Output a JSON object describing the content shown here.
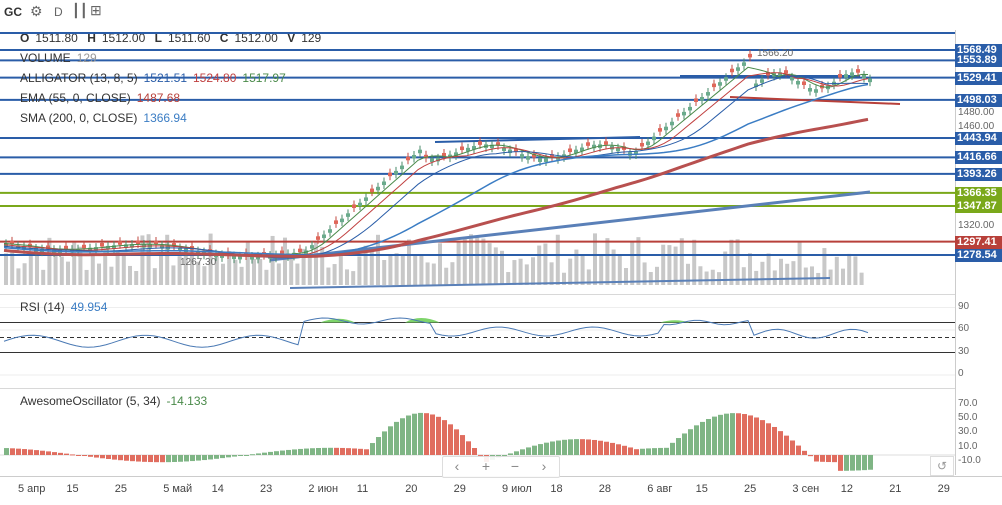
{
  "toolbar": {
    "symbol": "GC",
    "gear_icon": "gear-icon",
    "interval": "D",
    "indicators_icon": "indicators-icon",
    "add_icon": "add-chart-icon"
  },
  "ohlcv": {
    "o_label": "O",
    "o_value": "1511.80",
    "h_label": "H",
    "h_value": "1512.00",
    "l_label": "L",
    "l_value": "1511.60",
    "c_label": "C",
    "c_value": "1512.00",
    "v_label": "V",
    "v_value": "129"
  },
  "legend": {
    "volume_label": "VOLUME",
    "volume_value": "129",
    "alligator_label": "ALLIGATOR (13, 8, 5)",
    "alligator_v1": "1521.51",
    "alligator_v2": "1524.80",
    "alligator_v3": "1517.97",
    "ema_label": "EMA (55, 0, CLOSE)",
    "ema_value": "1487.68",
    "sma_label": "SMA (200, 0, CLOSE)",
    "sma_value": "1366.94"
  },
  "rsi": {
    "label": "RSI (14)",
    "value": "49.954",
    "ticks": [
      "90",
      "60",
      "30",
      "0"
    ]
  },
  "ao": {
    "label": "AwesomeOscillator (5, 34)",
    "value": "-14.133",
    "ticks": [
      "70.0",
      "50.0",
      "30.0",
      "10.0",
      "-10.0"
    ]
  },
  "annotations": {
    "high_label": "1566.20",
    "low_label": "1267.30"
  },
  "price_tags": [
    {
      "text": "1568.49",
      "color": "#2a5da8"
    },
    {
      "text": "1553.89",
      "color": "#2a5da8"
    },
    {
      "text": "1529.41",
      "color": "#2a5da8"
    },
    {
      "text": "1498.03",
      "color": "#2a5da8"
    },
    {
      "text": "1443.94",
      "color": "#2a5da8"
    },
    {
      "text": "1416.66",
      "color": "#2a5da8"
    },
    {
      "text": "1393.26",
      "color": "#2a5da8"
    },
    {
      "text": "1366.35",
      "color": "#7aa81a"
    },
    {
      "text": "1347.87",
      "color": "#7aa81a"
    },
    {
      "text": "1297.41",
      "color": "#b8403a"
    },
    {
      "text": "1278.54",
      "color": "#2a5da8"
    }
  ],
  "price_axis_ticks": [
    "1480.00",
    "1460.00",
    "1320.00"
  ],
  "time_labels": [
    "5 апр",
    "15",
    "25",
    "5 май",
    "14",
    "23",
    "2 июн",
    "11",
    "20",
    "29",
    "9 июл",
    "18",
    "28",
    "6 авг",
    "15",
    "25",
    "3 сен",
    "12",
    "21",
    "29"
  ],
  "nav": {
    "back": "‹",
    "zoom_in": "+",
    "zoom_out": "−",
    "forward": "›",
    "undo": "↺"
  },
  "colors": {
    "up": "#6aab8c",
    "down": "#e0675a",
    "blue_line": "#2a5da8",
    "olive_line": "#7aa81a",
    "red_line": "#b8403a",
    "sma": "#b8504f",
    "ema": "#3b7dc4",
    "volume": "#c8c8c8",
    "rsi_line": "#4a79b4",
    "rsi_fill": "#7ed46a",
    "ao_up": "#7fb585",
    "ao_down": "#e06d5f"
  }
}
